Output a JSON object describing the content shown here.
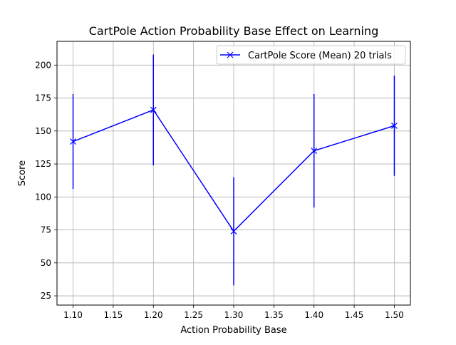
{
  "chart_data": {
    "type": "line",
    "title": "CartPole Action Probability Base Effect on Learning",
    "xlabel": "Action Probability Base",
    "ylabel": "Score",
    "xlim": [
      1.08,
      1.52
    ],
    "ylim": [
      18,
      218
    ],
    "x_ticks": [
      1.1,
      1.15,
      1.2,
      1.25,
      1.3,
      1.35,
      1.4,
      1.45,
      1.5
    ],
    "x_tick_labels": [
      "1.10",
      "1.15",
      "1.20",
      "1.25",
      "1.30",
      "1.35",
      "1.40",
      "1.45",
      "1.50"
    ],
    "y_ticks": [
      25,
      50,
      75,
      100,
      125,
      150,
      175,
      200
    ],
    "y_tick_labels": [
      "25",
      "50",
      "75",
      "100",
      "125",
      "150",
      "175",
      "200"
    ],
    "grid": true,
    "legend_position": "top-right",
    "series": [
      {
        "name": "CartPole Score (Mean) 20 trials",
        "color": "#0000ff",
        "marker": "x",
        "x": [
          1.1,
          1.2,
          1.3,
          1.4,
          1.5
        ],
        "y": [
          142,
          166,
          74,
          135,
          154
        ],
        "error": [
          36,
          42,
          41,
          43,
          38
        ]
      }
    ]
  }
}
